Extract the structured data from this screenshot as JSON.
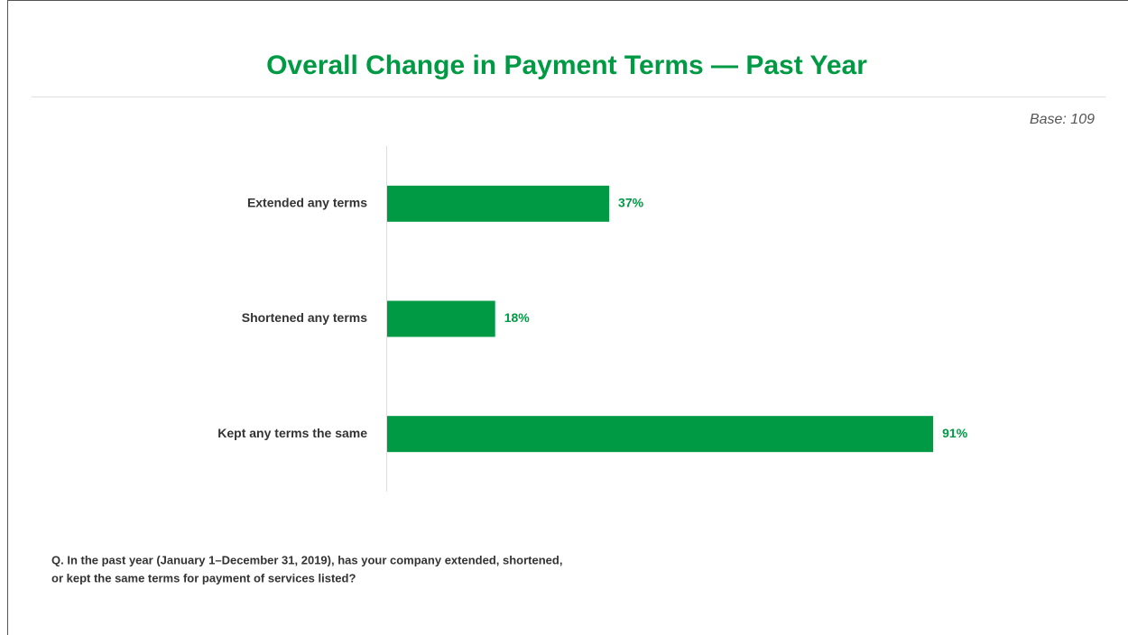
{
  "chart_data": {
    "type": "bar",
    "orientation": "horizontal",
    "title": "Overall Change in Payment Terms — Past Year",
    "subtitle": "Base: 109",
    "categories": [
      "Extended any terms",
      "Shortened any terms",
      "Kept any terms the same"
    ],
    "values": [
      37,
      18,
      91
    ],
    "value_labels": [
      "37%",
      "18%",
      "91%"
    ],
    "color": "#009a44",
    "xlim": [
      0,
      100
    ],
    "note": [
      "Q. In the past year (January 1–December 31, 2019), has your company extended, shortened,",
      "or kept the same terms for payment of services listed?"
    ]
  }
}
